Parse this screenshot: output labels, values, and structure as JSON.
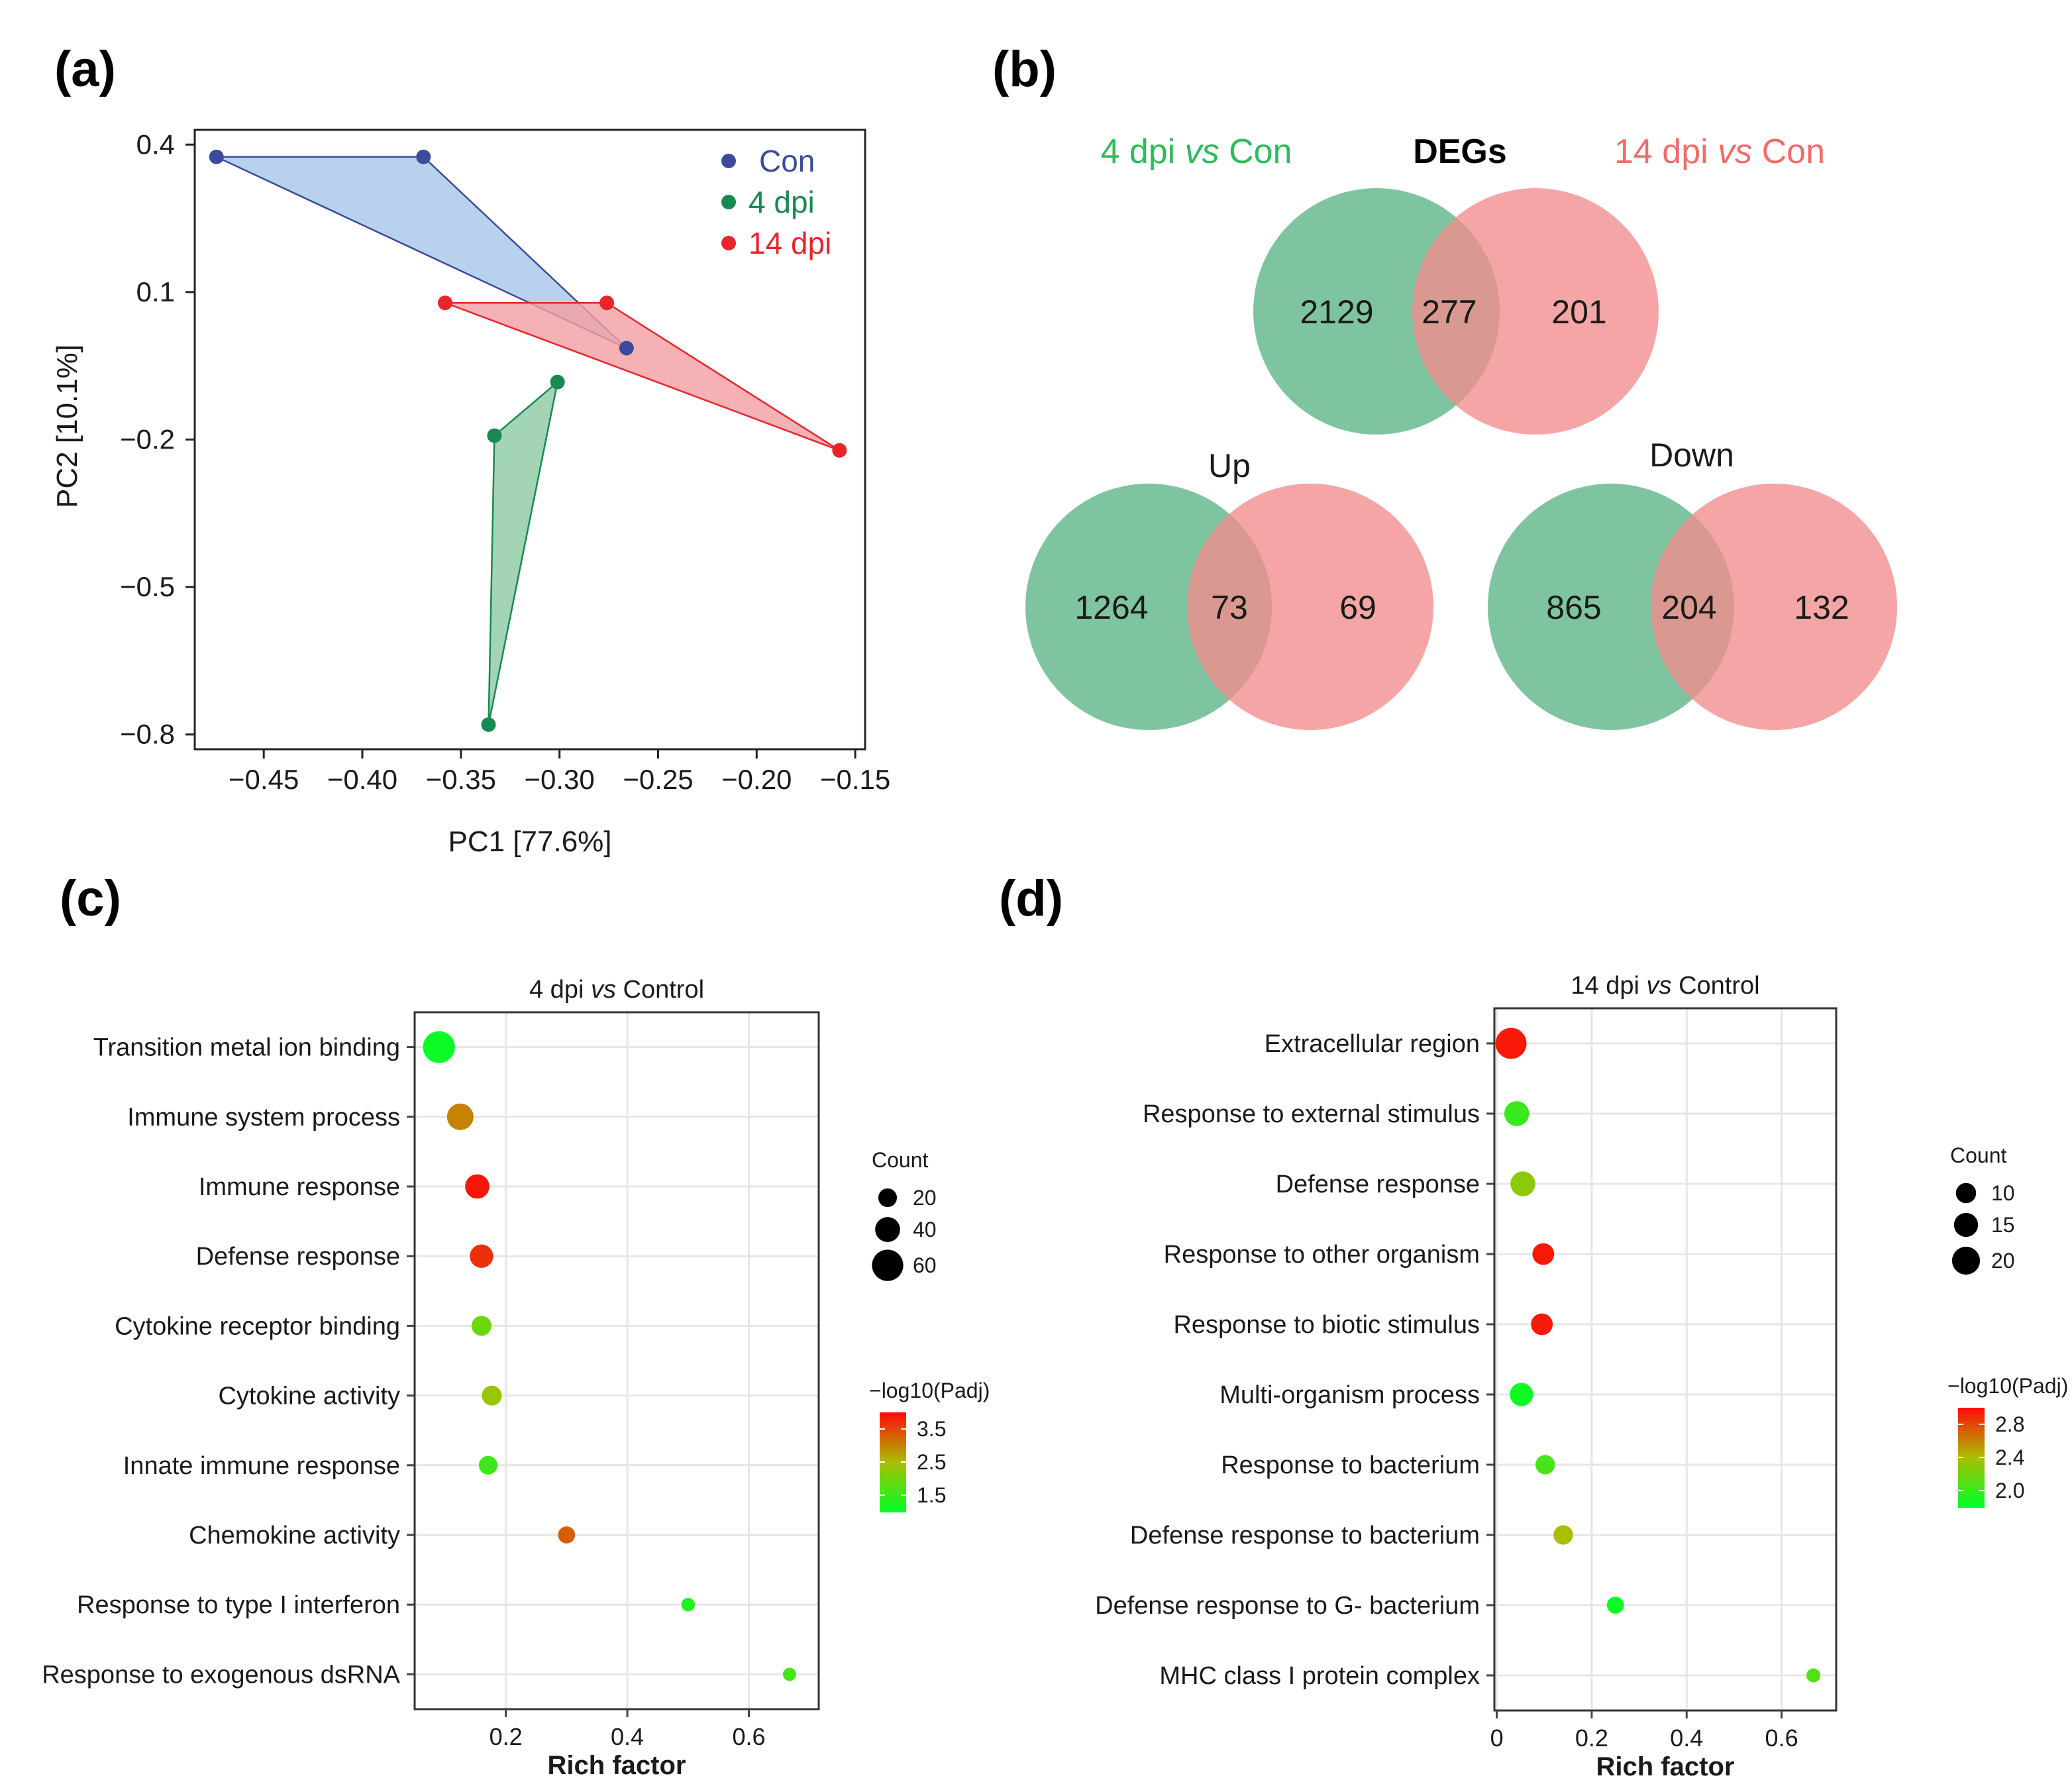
{
  "panel_labels": [
    "(a)",
    "(b)",
    "(c)",
    "(d)"
  ],
  "colors": {
    "con": "#3b4a9b",
    "dpi4": "#168a50",
    "dpi14": "#e8252b",
    "con_fill": "#a8c8ea",
    "dpi4_fill": "#8fcaa3",
    "dpi14_fill": "#f3a0a2",
    "venn_green": "#7fc4a0",
    "venn_red": "#f28c8c",
    "grid": "#e6e6e6"
  },
  "chart_data": [
    {
      "id": "pca",
      "type": "scatter",
      "xlabel": "PC1 [77.6%]",
      "ylabel": "PC2 [10.1%]",
      "xlim": [
        -0.485,
        -0.145
      ],
      "ylim": [
        -0.83,
        0.43
      ],
      "xticks": [
        -0.45,
        -0.4,
        -0.35,
        -0.3,
        -0.25,
        -0.2,
        -0.15
      ],
      "xtick_labels": [
        "−0.45",
        "−0.40",
        "−0.35",
        "−0.30",
        "−0.25",
        "−0.20",
        "−0.15"
      ],
      "yticks": [
        0.4,
        0.1,
        -0.2,
        -0.5,
        -0.8
      ],
      "ytick_labels": [
        "0.4",
        "0.1",
        "−0.2",
        "−0.5",
        "−0.8"
      ],
      "series": [
        {
          "name": "Con",
          "key": "con",
          "points": [
            [
              -0.474,
              0.375
            ],
            [
              -0.369,
              0.375
            ],
            [
              -0.266,
              -0.014
            ]
          ]
        },
        {
          "name": "4 dpi",
          "key": "dpi4",
          "points": [
            [
              -0.301,
              -0.083
            ],
            [
              -0.333,
              -0.192
            ],
            [
              -0.336,
              -0.78
            ]
          ]
        },
        {
          "name": "14 dpi",
          "key": "dpi14",
          "points": [
            [
              -0.358,
              0.078
            ],
            [
              -0.276,
              0.078
            ],
            [
              -0.158,
              -0.222
            ]
          ]
        }
      ]
    },
    {
      "id": "venn",
      "type": "venn",
      "title_left": "4 dpi",
      "title_left_vs": "vs",
      "title_left_tail": "Con",
      "title_center": "DEGs",
      "title_right": "14 dpi",
      "title_right_vs": "vs",
      "title_right_tail": "Con",
      "sets": [
        {
          "name": "DEGs",
          "only_a": "2129",
          "both": "277",
          "only_b": "201"
        },
        {
          "name": "Up",
          "only_a": "1264",
          "both": "73",
          "only_b": "69"
        },
        {
          "name": "Down",
          "only_a": "865",
          "both": "204",
          "only_b": "132"
        }
      ]
    },
    {
      "id": "go4",
      "type": "scatter",
      "title": "4 dpi",
      "title_vs": "vs",
      "title_tail": "Control",
      "xlabel": "Rich factor",
      "xlim": [
        0.05,
        0.715
      ],
      "xticks": [
        0.2,
        0.4,
        0.6
      ],
      "xtick_labels": [
        "0.2",
        "0.4",
        "0.6"
      ],
      "size_legend_title": "Count",
      "size_legend": [
        {
          "label": "20",
          "value": 20
        },
        {
          "label": "40",
          "value": 40
        },
        {
          "label": "60",
          "value": 60
        }
      ],
      "color_legend_title": "−log10(Padj)",
      "color_range": [
        1.0,
        4.0
      ],
      "color_ticks": [
        {
          "label": "3.5",
          "value": 3.5
        },
        {
          "label": "2.5",
          "value": 2.5
        },
        {
          "label": "1.5",
          "value": 1.5
        }
      ],
      "size_range": [
        3,
        70
      ],
      "terms": [
        {
          "term": "Transition metal ion binding",
          "rich": 0.09,
          "count": 62,
          "padj": 1.1
        },
        {
          "term": "Immune system process",
          "rich": 0.125,
          "count": 45,
          "padj": 3.0
        },
        {
          "term": "Immune response",
          "rich": 0.153,
          "count": 38,
          "padj": 3.9
        },
        {
          "term": "Defense response",
          "rich": 0.16,
          "count": 35,
          "padj": 3.7
        },
        {
          "term": "Cytokine receptor binding",
          "rich": 0.16,
          "count": 24,
          "padj": 1.95
        },
        {
          "term": "Cytokine activity",
          "rich": 0.177,
          "count": 24,
          "padj": 2.35
        },
        {
          "term": "Innate immune response",
          "rich": 0.171,
          "count": 20,
          "padj": 1.55
        },
        {
          "term": "Chemokine activity",
          "rich": 0.3,
          "count": 15,
          "padj": 3.3
        },
        {
          "term": "Response to type I interferon",
          "rich": 0.5,
          "count": 4,
          "padj": 1.3
        },
        {
          "term": "Response to exogenous dsRNA",
          "rich": 0.667,
          "count": 3,
          "padj": 1.6
        }
      ]
    },
    {
      "id": "go14",
      "type": "scatter",
      "title": "14 dpi",
      "title_vs": "vs",
      "title_tail": "Control",
      "xlabel": "Rich factor",
      "xlim": [
        -0.005,
        0.715
      ],
      "xticks": [
        0,
        0.2,
        0.4,
        0.6
      ],
      "xtick_labels": [
        "0",
        "0.2",
        "0.4",
        "0.6"
      ],
      "size_legend_title": "Count",
      "size_legend": [
        {
          "label": "10",
          "value": 10
        },
        {
          "label": "15",
          "value": 15
        },
        {
          "label": "20",
          "value": 20
        }
      ],
      "color_legend_title": "−log10(Padj)",
      "color_range": [
        1.8,
        3.0
      ],
      "color_ticks": [
        {
          "label": "2.8",
          "value": 2.8
        },
        {
          "label": "2.4",
          "value": 2.4
        },
        {
          "label": "2.0",
          "value": 2.0
        }
      ],
      "size_range": [
        1,
        25
      ],
      "terms": [
        {
          "term": "Extracellular region",
          "rich": 0.03,
          "count": 24,
          "padj": 2.95
        },
        {
          "term": "Response to external stimulus",
          "rich": 0.042,
          "count": 16,
          "padj": 2.0
        },
        {
          "term": "Defense response",
          "rich": 0.055,
          "count": 16,
          "padj": 2.3
        },
        {
          "term": "Response to other organism",
          "rich": 0.098,
          "count": 12,
          "padj": 2.95
        },
        {
          "term": "Response to biotic stimulus",
          "rich": 0.095,
          "count": 12,
          "padj": 2.95
        },
        {
          "term": "Multi-organism process",
          "rich": 0.052,
          "count": 14,
          "padj": 1.85
        },
        {
          "term": "Response to bacterium",
          "rich": 0.102,
          "count": 9,
          "padj": 2.05
        },
        {
          "term": "Defense response to bacterium",
          "rich": 0.14,
          "count": 9,
          "padj": 2.4
        },
        {
          "term": "Defense response to G- bacterium",
          "rich": 0.25,
          "count": 6,
          "padj": 1.85
        },
        {
          "term": "MHC class I protein complex",
          "rich": 0.667,
          "count": 2,
          "padj": 2.1
        }
      ]
    }
  ]
}
